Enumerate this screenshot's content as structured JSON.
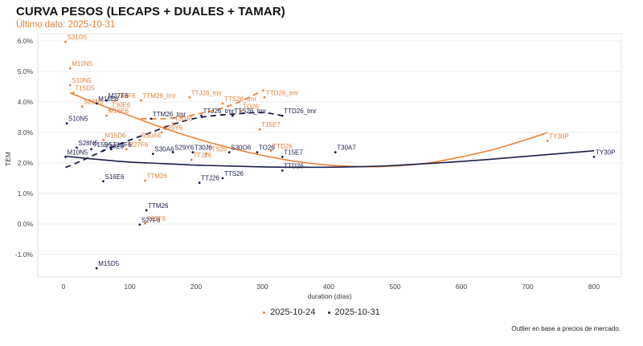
{
  "header": {
    "title": "CURVA PESOS (LECAPS + DUALES + TAMAR)",
    "subtitle": "Último dato: 2025-10-31"
  },
  "caption": "Outlier en base a precios de mercado.",
  "colors": {
    "prev": "#e8823a",
    "curr": "#1b1f4b",
    "grid": "#e6e6e6"
  },
  "chart_data": {
    "type": "scatter",
    "title": "CURVA PESOS (LECAPS + DUALES + TAMAR)",
    "subtitle": "Último dato: 2025-10-31",
    "xlabel": "duration (días)",
    "ylabel": "TEM",
    "xlim": [
      -38,
      843
    ],
    "ylim": [
      -1.8,
      6.2
    ],
    "xticks": [
      0,
      100,
      200,
      300,
      400,
      500,
      600,
      700,
      800
    ],
    "xtick_labels": [
      "0",
      "100",
      "200",
      "300",
      "400",
      "500",
      "600",
      "700",
      "800"
    ],
    "yticks": [
      -1,
      0,
      1,
      2,
      3,
      4,
      5,
      6
    ],
    "ytick_labels": [
      "-1.0%",
      "0.0%",
      "1.0%",
      "2.0%",
      "3.0%",
      "4.0%",
      "5.0%",
      "6.0%"
    ],
    "grid": true,
    "legend": {
      "placement": "bottom",
      "entries": [
        "2025-10-24",
        "2025-10-31"
      ]
    },
    "series": [
      {
        "name": "2025-10-24",
        "color": "#e8823a",
        "points": [
          {
            "label": "S31O5",
            "x": 3,
            "y": 5.97
          },
          {
            "label": "M10N5",
            "x": 10,
            "y": 5.1
          },
          {
            "label": "S10N5",
            "x": 10,
            "y": 4.55
          },
          {
            "label": "T15D5",
            "x": 15,
            "y": 4.3
          },
          {
            "label": "S28N5",
            "x": 28,
            "y": 3.85
          },
          {
            "label": "M16E6",
            "x": 65,
            "y": 3.55
          },
          {
            "label": "T30E6",
            "x": 70,
            "y": 3.75
          },
          {
            "label": "T13F6",
            "x": 78,
            "y": 4.05
          },
          {
            "label": "TTM26_tmr",
            "x": 117,
            "y": 4.05
          },
          {
            "label": "M15D6",
            "x": 60,
            "y": 2.75
          },
          {
            "label": "S30A6",
            "x": 115,
            "y": 2.75
          },
          {
            "label": "M27F6",
            "x": 95,
            "y": 2.45
          },
          {
            "label": "TTM26",
            "x": 123,
            "y": 1.42
          },
          {
            "label": "S27F6",
            "x": 123,
            "y": 0.02
          },
          {
            "label": "T30J6",
            "x": 165,
            "y": 3.3
          },
          {
            "label": "S29Y6",
            "x": 148,
            "y": 3.0
          },
          {
            "label": "TTJ26_tmr",
            "x": 190,
            "y": 4.15
          },
          {
            "label": "TTJ26",
            "x": 193,
            "y": 2.1
          },
          {
            "label": "TTS26",
            "x": 215,
            "y": 2.3
          },
          {
            "label": "TTS26_tmr",
            "x": 240,
            "y": 3.95
          },
          {
            "label": "TO26",
            "x": 268,
            "y": 3.7
          },
          {
            "label": "TTD26_tmr",
            "x": 303,
            "y": 4.15
          },
          {
            "label": "T15E7",
            "x": 296,
            "y": 3.1
          },
          {
            "label": "TTD26",
            "x": 313,
            "y": 2.4
          },
          {
            "label": "TY30P",
            "x": 730,
            "y": 2.72
          }
        ]
      },
      {
        "name": "2025-10-31",
        "color": "#1b1f4b",
        "points": [
          {
            "label": "M10N5",
            "x": 3,
            "y": 2.2
          },
          {
            "label": "S10N5",
            "x": 5,
            "y": 3.3
          },
          {
            "label": "S28N5",
            "x": 20,
            "y": 2.5
          },
          {
            "label": "M16E6",
            "x": 50,
            "y": 3.95
          },
          {
            "label": "M27F6",
            "x": 65,
            "y": 4.05
          },
          {
            "label": "T15D5",
            "x": 42,
            "y": 2.45
          },
          {
            "label": "T30E6",
            "x": 60,
            "y": 2.4
          },
          {
            "label": "T13F6",
            "x": 72,
            "y": 2.45
          },
          {
            "label": "S16E6",
            "x": 60,
            "y": 1.4
          },
          {
            "label": "TTM26_tmr",
            "x": 132,
            "y": 3.45
          },
          {
            "label": "TTM26",
            "x": 125,
            "y": 0.45
          },
          {
            "label": "S27F6",
            "x": 115,
            "y": -0.02
          },
          {
            "label": "M15D5",
            "x": 50,
            "y": -1.45
          },
          {
            "label": "S30A6",
            "x": 135,
            "y": 2.3
          },
          {
            "label": "S29Y6",
            "x": 165,
            "y": 2.35
          },
          {
            "label": "T30J6",
            "x": 195,
            "y": 2.35
          },
          {
            "label": "TTJ26",
            "x": 205,
            "y": 1.35
          },
          {
            "label": "TTJ26_tmr",
            "x": 208,
            "y": 3.55
          },
          {
            "label": "TTS26",
            "x": 240,
            "y": 1.5
          },
          {
            "label": "TTS26_tmr",
            "x": 255,
            "y": 3.55
          },
          {
            "label": "S30O6",
            "x": 250,
            "y": 2.35
          },
          {
            "label": "TO26",
            "x": 292,
            "y": 2.35
          },
          {
            "label": "TTD26_tmr",
            "x": 330,
            "y": 3.55
          },
          {
            "label": "T15E7",
            "x": 330,
            "y": 2.2
          },
          {
            "label": "TTD26",
            "x": 330,
            "y": 1.75
          },
          {
            "label": "T30A7",
            "x": 410,
            "y": 2.35
          },
          {
            "label": "TY30P",
            "x": 800,
            "y": 2.2
          }
        ]
      }
    ],
    "fits": [
      {
        "name": "2025-10-24 fixed-rate trend",
        "style": "solid",
        "color": "#e8823a",
        "points": [
          [
            10,
            4.3
          ],
          [
            50,
            3.95
          ],
          [
            100,
            3.55
          ],
          [
            150,
            3.15
          ],
          [
            200,
            2.8
          ],
          [
            250,
            2.5
          ],
          [
            300,
            2.25
          ],
          [
            350,
            2.05
          ],
          [
            400,
            1.93
          ],
          [
            450,
            1.88
          ],
          [
            500,
            1.9
          ],
          [
            550,
            2.0
          ],
          [
            600,
            2.2
          ],
          [
            650,
            2.45
          ],
          [
            700,
            2.78
          ],
          [
            730,
            3.0
          ]
        ]
      },
      {
        "name": "2025-10-31 fixed-rate trend",
        "style": "solid",
        "color": "#1b1f4b",
        "points": [
          [
            3,
            2.22
          ],
          [
            50,
            2.12
          ],
          [
            100,
            2.03
          ],
          [
            150,
            1.98
          ],
          [
            200,
            1.93
          ],
          [
            250,
            1.9
          ],
          [
            300,
            1.87
          ],
          [
            350,
            1.86
          ],
          [
            400,
            1.86
          ],
          [
            450,
            1.88
          ],
          [
            500,
            1.92
          ],
          [
            600,
            2.05
          ],
          [
            700,
            2.22
          ],
          [
            800,
            2.4
          ]
        ]
      },
      {
        "name": "2025-10-24 TAMAR trend",
        "style": "dashed",
        "color": "#e8823a",
        "points": [
          [
            117,
            3.45
          ],
          [
            150,
            3.45
          ],
          [
            190,
            3.55
          ],
          [
            240,
            3.8
          ],
          [
            270,
            4.05
          ],
          [
            303,
            4.4
          ]
        ]
      },
      {
        "name": "2025-10-31 TAMAR trend",
        "style": "dashed",
        "color": "#1b1f4b",
        "points": [
          [
            3,
            1.85
          ],
          [
            30,
            2.1
          ],
          [
            60,
            2.4
          ],
          [
            100,
            2.75
          ],
          [
            132,
            3.0
          ],
          [
            170,
            3.3
          ],
          [
            208,
            3.5
          ],
          [
            255,
            3.6
          ],
          [
            300,
            3.65
          ],
          [
            330,
            3.55
          ]
        ]
      }
    ]
  }
}
